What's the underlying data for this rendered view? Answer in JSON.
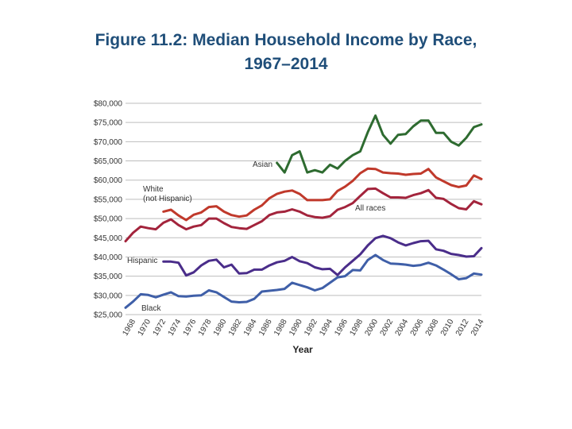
{
  "slide": {
    "title_line1": "Figure 11.2: Median Household Income by Race,",
    "title_line2": "1967–2014"
  },
  "chart_data": {
    "type": "line",
    "title": "",
    "xlabel": "Year",
    "ylabel": "",
    "xlim": [
      1967,
      2014
    ],
    "ylim": [
      25000,
      80000
    ],
    "yticks": [
      25000,
      30000,
      35000,
      40000,
      45000,
      50000,
      55000,
      60000,
      65000,
      70000,
      75000,
      80000
    ],
    "ytick_labels": [
      "$25,000",
      "$30,000",
      "$35,000",
      "$40,000",
      "$45,000",
      "$50,000",
      "$55,000",
      "$60,000",
      "$65,000",
      "$70,000",
      "$75,000",
      "$80,000"
    ],
    "xticks": [
      1968,
      1970,
      1972,
      1974,
      1976,
      1978,
      1980,
      1982,
      1984,
      1986,
      1988,
      1990,
      1992,
      1994,
      1996,
      1998,
      2000,
      2002,
      2004,
      2006,
      2008,
      2010,
      2012,
      2014
    ],
    "grid": "horizontal",
    "legend": "inline labels",
    "series": [
      {
        "name": "Asian",
        "color": "#2e6b30",
        "label_lines": [
          "Asian"
        ],
        "x": [
          1987,
          1988,
          1989,
          1990,
          1991,
          1992,
          1993,
          1994,
          1995,
          1996,
          1997,
          1998,
          1999,
          2000,
          2001,
          2002,
          2003,
          2004,
          2005,
          2006,
          2007,
          2008,
          2009,
          2010,
          2011,
          2012,
          2013,
          2014
        ],
        "values": [
          64500,
          62000,
          66500,
          67500,
          62000,
          62600,
          62000,
          64000,
          63000,
          65000,
          66500,
          67500,
          72500,
          76800,
          71800,
          69500,
          71800,
          72000,
          74000,
          75500,
          75500,
          72300,
          72300,
          70000,
          69000,
          71000,
          73800,
          74500
        ]
      },
      {
        "name": "White (not Hispanic)",
        "color": "#c0392b",
        "label_lines": [
          "White",
          "(not Hispanic)"
        ],
        "x": [
          1972,
          1973,
          1974,
          1975,
          1976,
          1977,
          1978,
          1979,
          1980,
          1981,
          1982,
          1983,
          1984,
          1985,
          1986,
          1987,
          1988,
          1989,
          1990,
          1991,
          1992,
          1993,
          1994,
          1995,
          1996,
          1997,
          1998,
          1999,
          2000,
          2001,
          2002,
          2003,
          2004,
          2005,
          2006,
          2007,
          2008,
          2009,
          2010,
          2011,
          2012,
          2013,
          2014
        ],
        "values": [
          51800,
          52300,
          50800,
          49600,
          51000,
          51600,
          53000,
          53200,
          51800,
          50900,
          50500,
          50800,
          52300,
          53400,
          55300,
          56400,
          57000,
          57300,
          56400,
          54800,
          54800,
          54800,
          55000,
          57200,
          58300,
          59800,
          61800,
          63000,
          62900,
          62000,
          61800,
          61700,
          61400,
          61600,
          61700,
          62900,
          60700,
          59700,
          58700,
          58200,
          58600,
          61200,
          60300
        ]
      },
      {
        "name": "All races",
        "color": "#a3243c",
        "label_lines": [
          "All races"
        ],
        "x": [
          1967,
          1968,
          1969,
          1970,
          1971,
          1972,
          1973,
          1974,
          1975,
          1976,
          1977,
          1978,
          1979,
          1980,
          1981,
          1982,
          1983,
          1984,
          1985,
          1986,
          1987,
          1988,
          1989,
          1990,
          1991,
          1992,
          1993,
          1994,
          1995,
          1996,
          1997,
          1998,
          1999,
          2000,
          2001,
          2002,
          2003,
          2004,
          2005,
          2006,
          2007,
          2008,
          2009,
          2010,
          2011,
          2012,
          2013,
          2014
        ],
        "values": [
          44100,
          46300,
          47900,
          47500,
          47200,
          48900,
          49800,
          48300,
          47200,
          47900,
          48300,
          50000,
          50000,
          48800,
          47800,
          47500,
          47300,
          48300,
          49300,
          50900,
          51600,
          51800,
          52400,
          51800,
          50800,
          50400,
          50200,
          50600,
          52300,
          53000,
          54000,
          55900,
          57700,
          57800,
          56600,
          55500,
          55500,
          55400,
          56100,
          56600,
          57400,
          55400,
          55100,
          53800,
          52700,
          52400,
          54500,
          53700
        ]
      },
      {
        "name": "Hispanic",
        "color": "#4a2d8a",
        "label_lines": [
          "Hispanic"
        ],
        "x": [
          1972,
          1973,
          1974,
          1975,
          1976,
          1977,
          1978,
          1979,
          1980,
          1981,
          1982,
          1983,
          1984,
          1985,
          1986,
          1987,
          1988,
          1989,
          1990,
          1991,
          1992,
          1993,
          1994,
          1995,
          1996,
          1997,
          1998,
          1999,
          2000,
          2001,
          2002,
          2003,
          2004,
          2005,
          2006,
          2007,
          2008,
          2009,
          2010,
          2011,
          2012,
          2013,
          2014
        ],
        "values": [
          38800,
          38800,
          38500,
          35200,
          36000,
          37800,
          39000,
          39300,
          37300,
          38000,
          35700,
          35800,
          36700,
          36700,
          37800,
          38600,
          39000,
          40000,
          38900,
          38400,
          37300,
          36800,
          36900,
          35300,
          37300,
          39000,
          40700,
          43000,
          44900,
          45500,
          44900,
          43800,
          43000,
          43600,
          44100,
          44200,
          42000,
          41600,
          40800,
          40500,
          40100,
          40200,
          42300
        ]
      },
      {
        "name": "Black",
        "color": "#3f5fa8",
        "label_lines": [
          "Black"
        ],
        "x": [
          1967,
          1968,
          1969,
          1970,
          1971,
          1972,
          1973,
          1974,
          1975,
          1976,
          1977,
          1978,
          1979,
          1980,
          1981,
          1982,
          1983,
          1984,
          1985,
          1986,
          1987,
          1988,
          1989,
          1990,
          1991,
          1992,
          1993,
          1994,
          1995,
          1996,
          1997,
          1998,
          1999,
          2000,
          2001,
          2002,
          2003,
          2004,
          2005,
          2006,
          2007,
          2008,
          2009,
          2010,
          2011,
          2012,
          2013,
          2014
        ],
        "values": [
          26800,
          28400,
          30300,
          30100,
          29500,
          30200,
          30800,
          29800,
          29700,
          29900,
          30000,
          31300,
          30800,
          29600,
          28400,
          28200,
          28300,
          29100,
          31000,
          31200,
          31400,
          31700,
          33300,
          32700,
          32100,
          31300,
          31900,
          33300,
          34700,
          35000,
          36600,
          36500,
          39200,
          40500,
          39200,
          38300,
          38200,
          38000,
          37700,
          37900,
          38500,
          37800,
          36700,
          35500,
          34200,
          34500,
          35700,
          35400
        ]
      }
    ]
  }
}
